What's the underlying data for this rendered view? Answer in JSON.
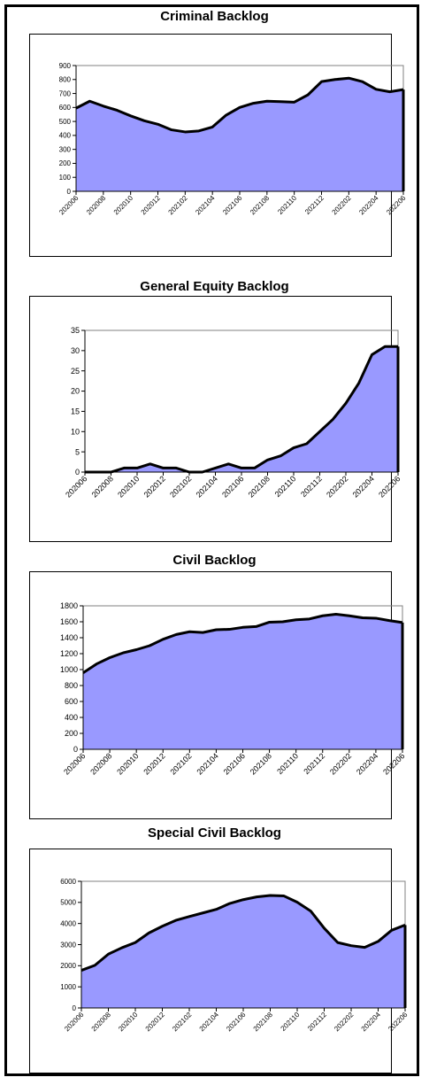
{
  "chart_data": [
    {
      "type": "area",
      "title": "Criminal Backlog",
      "ylim": [
        0,
        900
      ],
      "yticks": [
        0,
        100,
        200,
        300,
        400,
        500,
        600,
        700,
        800,
        900
      ],
      "x_tick_labels": [
        "202006",
        "202008",
        "202010",
        "202012",
        "202102",
        "202104",
        "202106",
        "202108",
        "202110",
        "202112",
        "202202",
        "202204",
        "202206"
      ],
      "grid": false,
      "legend": "none",
      "fill_color": "#9999ff",
      "line_color": "#000000",
      "values": [
        595,
        645,
        610,
        580,
        540,
        505,
        480,
        440,
        425,
        432,
        460,
        545,
        600,
        630,
        645,
        642,
        638,
        690,
        785,
        800,
        810,
        785,
        730,
        712,
        728
      ]
    },
    {
      "type": "area",
      "title": "General Equity Backlog",
      "ylim": [
        0,
        35
      ],
      "yticks": [
        0,
        5,
        10,
        15,
        20,
        25,
        30,
        35
      ],
      "x_tick_labels": [
        "202006",
        "202008",
        "202010",
        "202012",
        "202102",
        "202104",
        "202106",
        "202108",
        "202110",
        "202112",
        "202202",
        "202204",
        "202206"
      ],
      "grid": false,
      "legend": "none",
      "fill_color": "#9999ff",
      "line_color": "#000000",
      "values": [
        0,
        0,
        0,
        1,
        1,
        2,
        1,
        1,
        0,
        0,
        1,
        2,
        1,
        1,
        3,
        4,
        6,
        7,
        10,
        13,
        17,
        22,
        29,
        31,
        31
      ]
    },
    {
      "type": "area",
      "title": "Civil Backlog",
      "ylim": [
        0,
        1800
      ],
      "yticks": [
        0,
        200,
        400,
        600,
        800,
        1000,
        1200,
        1400,
        1600,
        1800
      ],
      "x_tick_labels": [
        "202006",
        "202008",
        "202010",
        "202012",
        "202102",
        "202104",
        "202106",
        "202108",
        "202110",
        "202112",
        "202202",
        "202204",
        "202206"
      ],
      "grid": false,
      "legend": "none",
      "fill_color": "#9999ff",
      "line_color": "#000000",
      "values": [
        960,
        1070,
        1150,
        1210,
        1250,
        1300,
        1380,
        1440,
        1475,
        1465,
        1500,
        1505,
        1530,
        1540,
        1595,
        1600,
        1625,
        1635,
        1675,
        1695,
        1675,
        1650,
        1645,
        1615,
        1590
      ]
    },
    {
      "type": "area",
      "title": "Special Civil Backlog",
      "ylim": [
        0,
        6000
      ],
      "yticks": [
        0,
        1000,
        2000,
        3000,
        4000,
        5000,
        6000
      ],
      "x_tick_labels": [
        "202006",
        "202008",
        "202010",
        "202012",
        "202102",
        "202104",
        "202106",
        "202108",
        "202110",
        "202112",
        "202202",
        "202204",
        "202206"
      ],
      "grid": false,
      "legend": "none",
      "fill_color": "#9999ff",
      "line_color": "#000000",
      "values": [
        1780,
        2020,
        2550,
        2850,
        3100,
        3550,
        3870,
        4150,
        4330,
        4500,
        4670,
        4950,
        5130,
        5260,
        5330,
        5310,
        5010,
        4590,
        3780,
        3100,
        2950,
        2870,
        3150,
        3680,
        3930
      ]
    }
  ]
}
